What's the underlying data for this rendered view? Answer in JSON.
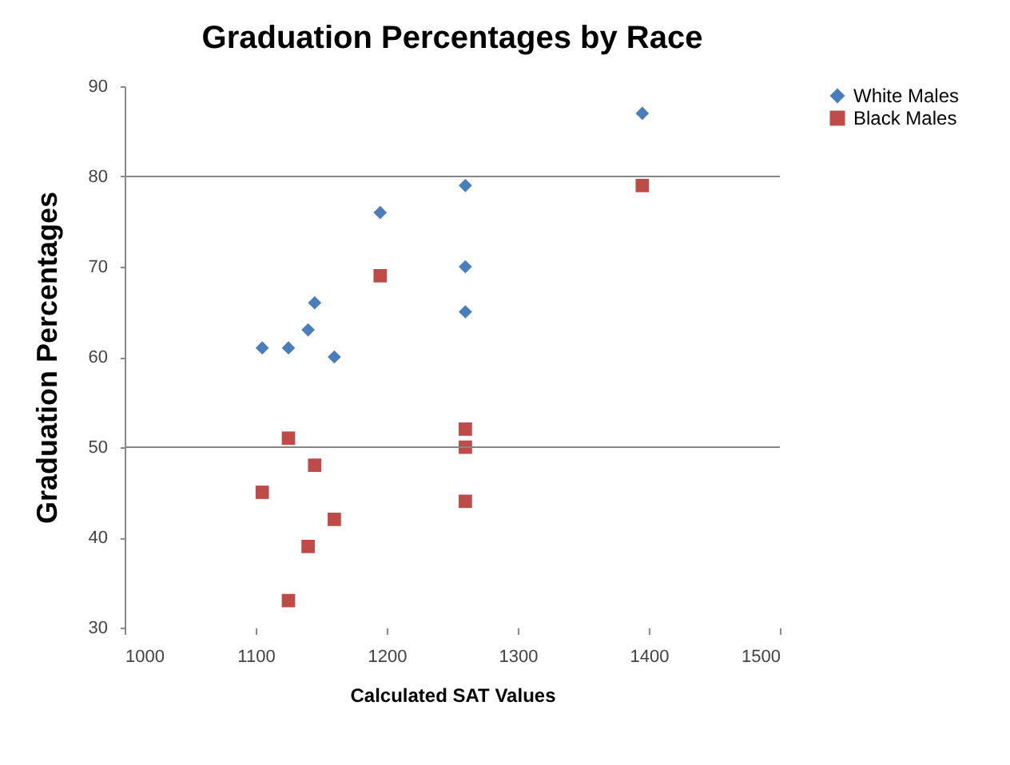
{
  "chart_data": {
    "type": "scatter",
    "title": "Graduation Percentages by Race",
    "xlabel": "Calculated SAT Values",
    "ylabel": "Graduation Percentages",
    "xlim": [
      1000,
      1500
    ],
    "xticks": [
      1000,
      1100,
      1200,
      1300,
      1400,
      1500
    ],
    "ylim": [
      30,
      90
    ],
    "yticks": [
      30,
      40,
      50,
      60,
      70,
      80,
      90
    ],
    "legend": "right",
    "ref_lines": [
      {
        "axis": "y",
        "value": 50,
        "label": null
      },
      {
        "axis": "y",
        "value": 80,
        "label": null
      }
    ],
    "series": [
      {
        "name": "White Males",
        "color": "#4a7ebb",
        "marker": "diamond",
        "x": [
          1105,
          1125,
          1140,
          1145,
          1160,
          1195,
          1260,
          1260,
          1260,
          1395
        ],
        "values": [
          61,
          61,
          63,
          66,
          60,
          76,
          79,
          70,
          65,
          87
        ]
      },
      {
        "name": "Black Males",
        "color": "#be4b48",
        "marker": "square",
        "x": [
          1105,
          1125,
          1125,
          1140,
          1145,
          1160,
          1195,
          1260,
          1260,
          1260,
          1395
        ],
        "values": [
          45,
          51,
          33,
          39,
          48,
          42,
          69,
          52,
          50,
          44,
          79
        ]
      }
    ]
  }
}
